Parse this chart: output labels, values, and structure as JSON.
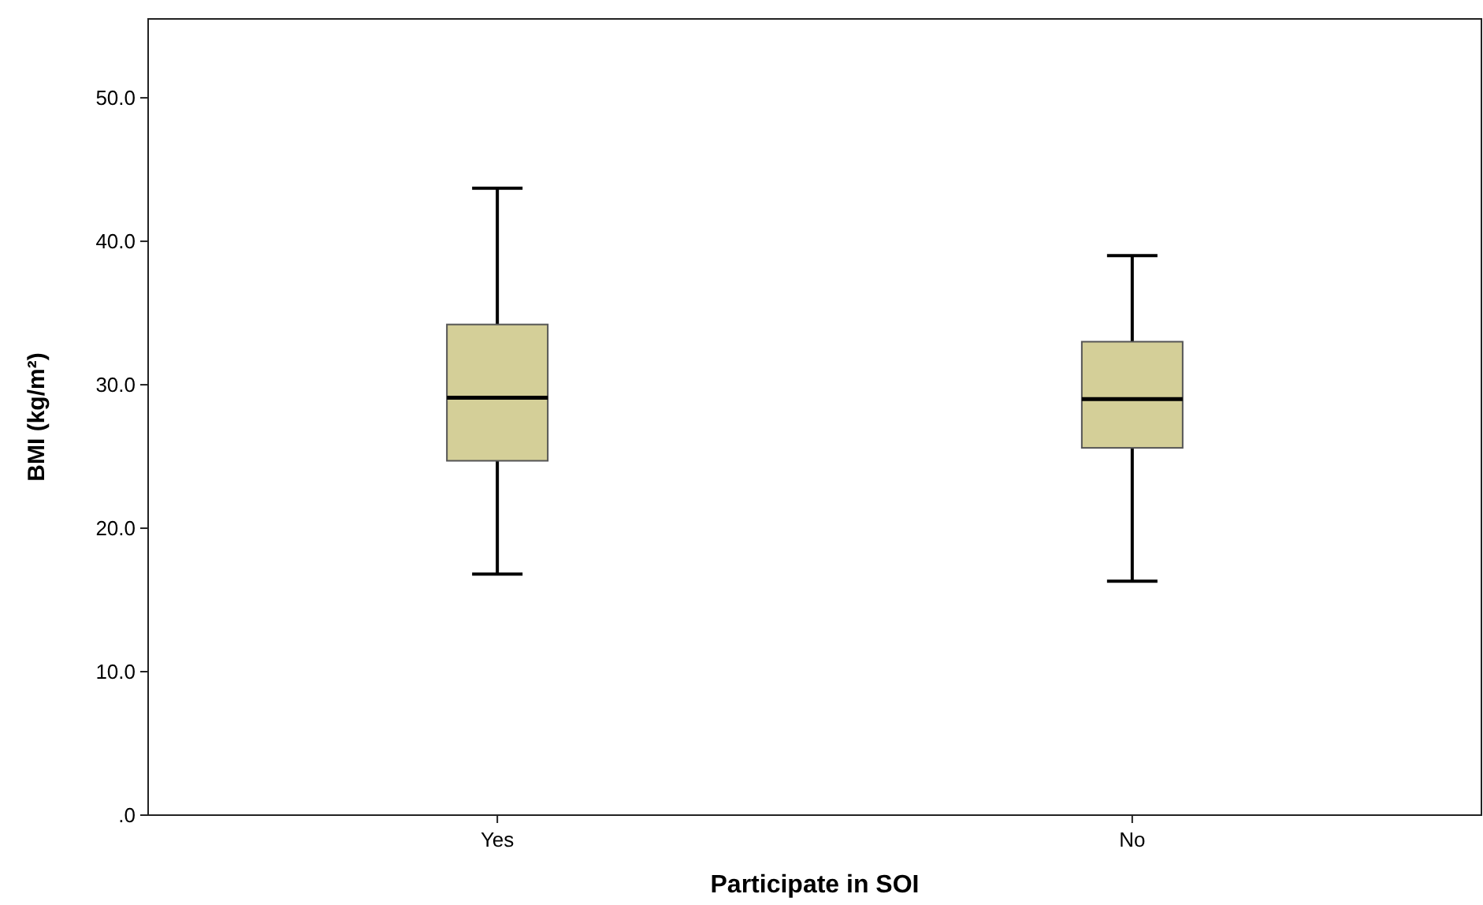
{
  "chart_data": {
    "type": "box",
    "xlabel": "Participate in SOI",
    "ylabel": "BMI (kg/m²)",
    "categories": [
      "Yes",
      "No"
    ],
    "boxes": [
      {
        "low": 16.8,
        "q1": 24.7,
        "median": 29.1,
        "q3": 34.2,
        "high": 43.7
      },
      {
        "low": 16.3,
        "q1": 25.6,
        "median": 29.0,
        "q3": 33.0,
        "high": 39.0
      }
    ],
    "color": "#d4cf98",
    "ylim": [
      0,
      55.5
    ],
    "yticks": [
      {
        "value": 0,
        "label": ".0"
      },
      {
        "value": 10,
        "label": "10.0"
      },
      {
        "value": 20,
        "label": "20.0"
      },
      {
        "value": 30,
        "label": "30.0"
      },
      {
        "value": 40,
        "label": "40.0"
      },
      {
        "value": 50,
        "label": "50.0"
      }
    ],
    "grid": false
  }
}
